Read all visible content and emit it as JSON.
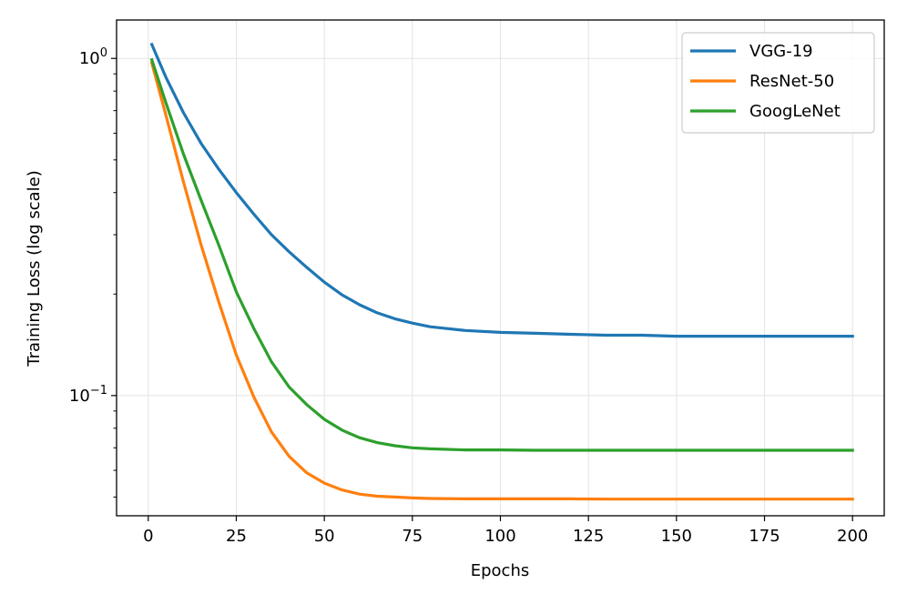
{
  "chart_data": {
    "type": "line",
    "title": "",
    "xlabel": "Epochs",
    "ylabel": "Training Loss (log scale)",
    "yscale": "log",
    "xlim": [
      -9,
      209
    ],
    "ylim": [
      0.044,
      1.3
    ],
    "xticks": [
      0,
      25,
      50,
      75,
      100,
      125,
      150,
      175,
      200
    ],
    "yticks": [
      {
        "value": 1.0,
        "base": "10",
        "exp": "0"
      },
      {
        "value": 0.1,
        "base": "10",
        "exp": "−1"
      }
    ],
    "grid": true,
    "legend_position": "top-right",
    "x": [
      1,
      5,
      10,
      15,
      20,
      25,
      30,
      35,
      40,
      45,
      50,
      55,
      60,
      65,
      70,
      75,
      80,
      90,
      100,
      110,
      120,
      130,
      140,
      150,
      160,
      170,
      180,
      190,
      200
    ],
    "series": [
      {
        "name": "VGG-19",
        "color": "#1f77b4",
        "values": [
          1.1,
          0.88,
          0.69,
          0.56,
          0.47,
          0.4,
          0.345,
          0.3,
          0.267,
          0.24,
          0.217,
          0.199,
          0.186,
          0.176,
          0.169,
          0.164,
          0.16,
          0.156,
          0.154,
          0.153,
          0.152,
          0.151,
          0.151,
          0.15,
          0.15,
          0.15,
          0.15,
          0.15,
          0.15
        ]
      },
      {
        "name": "ResNet-50",
        "color": "#ff7f0e",
        "values": [
          0.97,
          0.68,
          0.43,
          0.28,
          0.19,
          0.132,
          0.099,
          0.078,
          0.066,
          0.059,
          0.055,
          0.0525,
          0.051,
          0.0503,
          0.05,
          0.0497,
          0.0495,
          0.0494,
          0.0494,
          0.0494,
          0.0494,
          0.0493,
          0.0493,
          0.0493,
          0.0493,
          0.0493,
          0.0493,
          0.0493,
          0.0493
        ]
      },
      {
        "name": "GoogLeNet",
        "color": "#2ca02c",
        "values": [
          0.99,
          0.74,
          0.52,
          0.38,
          0.28,
          0.203,
          0.158,
          0.126,
          0.106,
          0.094,
          0.085,
          0.079,
          0.075,
          0.0725,
          0.071,
          0.07,
          0.0695,
          0.069,
          0.069,
          0.0688,
          0.0688,
          0.0688,
          0.0688,
          0.0688,
          0.0688,
          0.0688,
          0.0688,
          0.0688,
          0.0688
        ]
      }
    ]
  }
}
